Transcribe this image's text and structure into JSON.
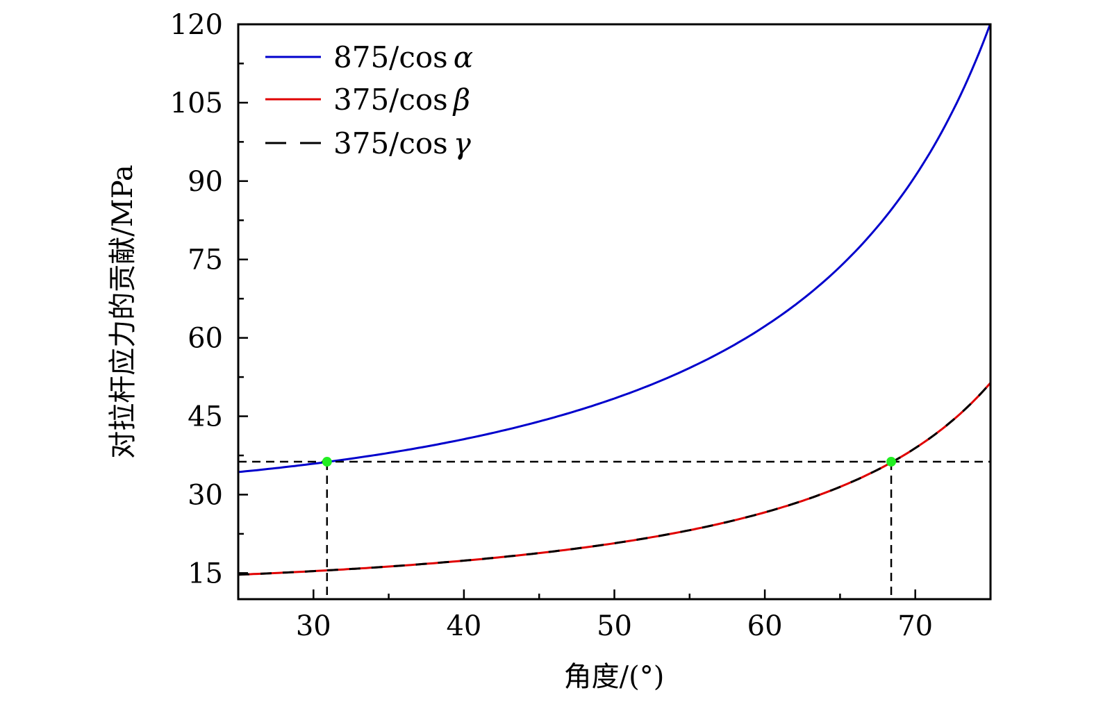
{
  "chart_data": {
    "type": "line",
    "title": "",
    "xlabel": "角度/(°)",
    "ylabel": "对拉杆应力的贡献/MPa",
    "xlim": [
      25,
      75
    ],
    "ylim": [
      10,
      120
    ],
    "xticks": [
      30,
      40,
      50,
      60,
      70
    ],
    "xtick_labels": [
      "30",
      "40",
      "50",
      "60",
      "70"
    ],
    "x_minor_ticks": [
      35,
      45,
      55,
      65
    ],
    "yticks": [
      15,
      30,
      45,
      60,
      75,
      90,
      105,
      120
    ],
    "ytick_labels": [
      "15",
      "30",
      "45",
      "60",
      "75",
      "90",
      "105",
      "120"
    ],
    "y_minor_ticks": [
      22.5,
      37.5,
      52.5,
      67.5,
      82.5,
      97.5,
      112.5
    ],
    "grid": false,
    "legend_position": "top-left",
    "x": [
      25,
      27.5,
      30,
      32.5,
      35,
      37.5,
      40,
      42.5,
      45,
      47.5,
      50,
      52.5,
      55,
      57.5,
      60,
      62.5,
      65,
      67.5,
      70,
      72.5,
      75
    ],
    "series": [
      {
        "name": "875/cos α",
        "legend_main": "875/cos",
        "legend_symbol": "α",
        "color": "#0000cc",
        "style": "solid",
        "values": [
          34.3,
          35.1,
          35.9,
          36.9,
          38.0,
          39.2,
          40.6,
          42.2,
          44.0,
          46.0,
          48.4,
          51.1,
          54.2,
          57.9,
          62.2,
          67.4,
          73.6,
          81.3,
          90.9,
          103.4,
          120.0
        ]
      },
      {
        "name": "375/cos β",
        "legend_main": "375/cos",
        "legend_symbol": "β",
        "color": "#e00000",
        "style": "solid",
        "values": [
          14.7,
          15.0,
          15.4,
          15.8,
          16.3,
          16.8,
          17.4,
          18.1,
          18.9,
          19.7,
          20.7,
          21.9,
          23.2,
          24.8,
          26.7,
          28.9,
          31.5,
          34.8,
          39.0,
          44.3,
          51.5
        ]
      },
      {
        "name": "375/cos γ",
        "legend_main": "375/cos",
        "legend_symbol": "γ",
        "color": "#000000",
        "style": "dashed",
        "values": [
          14.7,
          15.0,
          15.4,
          15.8,
          16.3,
          16.8,
          17.4,
          18.1,
          18.9,
          19.7,
          20.7,
          21.9,
          23.2,
          24.8,
          26.7,
          28.9,
          31.5,
          34.8,
          39.0,
          44.3,
          51.5
        ]
      }
    ],
    "reference_line": {
      "y": 36.3,
      "color": "#000000",
      "style": "dashed"
    },
    "markers": [
      {
        "x": 30.9,
        "y": 36.3,
        "color": "#22ee22"
      },
      {
        "x": 68.4,
        "y": 36.3,
        "color": "#22ee22"
      }
    ]
  }
}
